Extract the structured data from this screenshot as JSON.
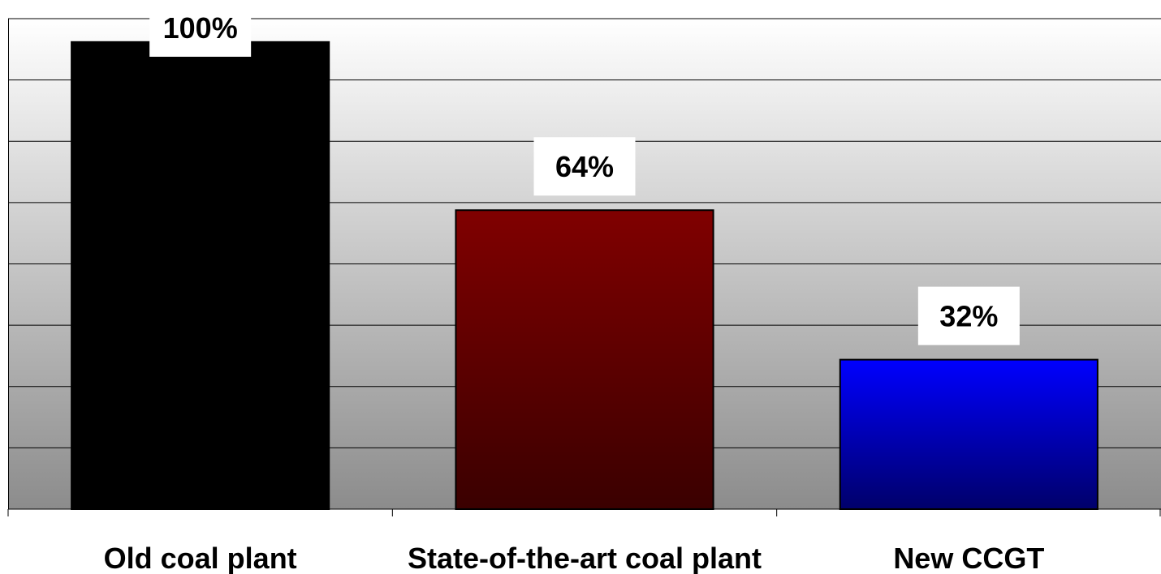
{
  "chart_data": {
    "type": "bar",
    "title": "",
    "xlabel": "",
    "ylabel": "",
    "categories": [
      "Old coal plant",
      "State-of-the-art coal plant",
      "New CCGT"
    ],
    "values": [
      100,
      64,
      32
    ],
    "data_labels": [
      "100%",
      "64%",
      "32%"
    ],
    "ylim": [
      0,
      105
    ],
    "grid": true,
    "legend": "none",
    "colors": {
      "bars": [
        {
          "top": "#000000",
          "bottom": "#000000"
        },
        {
          "top": "#800000",
          "bottom": "#3a0000"
        },
        {
          "top": "#0000ff",
          "bottom": "#00006a"
        }
      ],
      "plot_background_top": "#ffffff",
      "plot_background_bottom": "#8c8c8c",
      "gridline": "#000000"
    }
  }
}
